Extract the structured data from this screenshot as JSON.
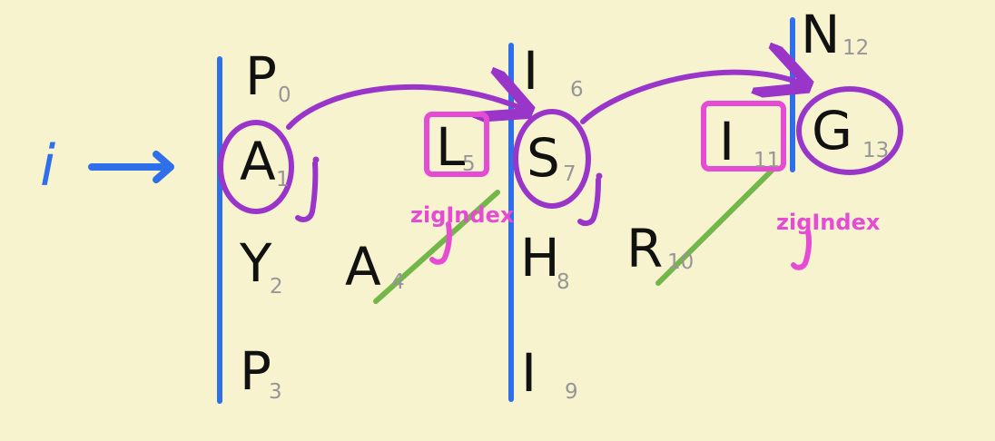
{
  "colors": {
    "background": "#f8f3cf",
    "divider": "#2f6fea",
    "arrow": "#2f6fea",
    "arc": "#9a35c9",
    "circle": "#9a35c9",
    "box": "#e64bd3",
    "diagonal": "#73b64a",
    "text": "#111111",
    "index": "#969696",
    "pointer_i": "#2f6fea",
    "pointer_j": "#9a35c9",
    "pointer_zig": "#e64bd3"
  },
  "pointers": {
    "i": "i",
    "j1": "j",
    "j2": "j",
    "zig1": "zigIndex",
    "zig2": "zigIndex"
  },
  "letters": [
    {
      "char": "P",
      "index": "0"
    },
    {
      "char": "A",
      "index": "1"
    },
    {
      "char": "Y",
      "index": "2"
    },
    {
      "char": "P",
      "index": "3"
    },
    {
      "char": "A",
      "index": "4"
    },
    {
      "char": "L",
      "index": "5"
    },
    {
      "char": "I",
      "index": "6"
    },
    {
      "char": "S",
      "index": "7"
    },
    {
      "char": "H",
      "index": "8"
    },
    {
      "char": "I",
      "index": "9"
    },
    {
      "char": "R",
      "index": "10"
    },
    {
      "char": "I",
      "index": "11"
    },
    {
      "char": "N",
      "index": "12"
    },
    {
      "char": "G",
      "index": "13"
    }
  ]
}
